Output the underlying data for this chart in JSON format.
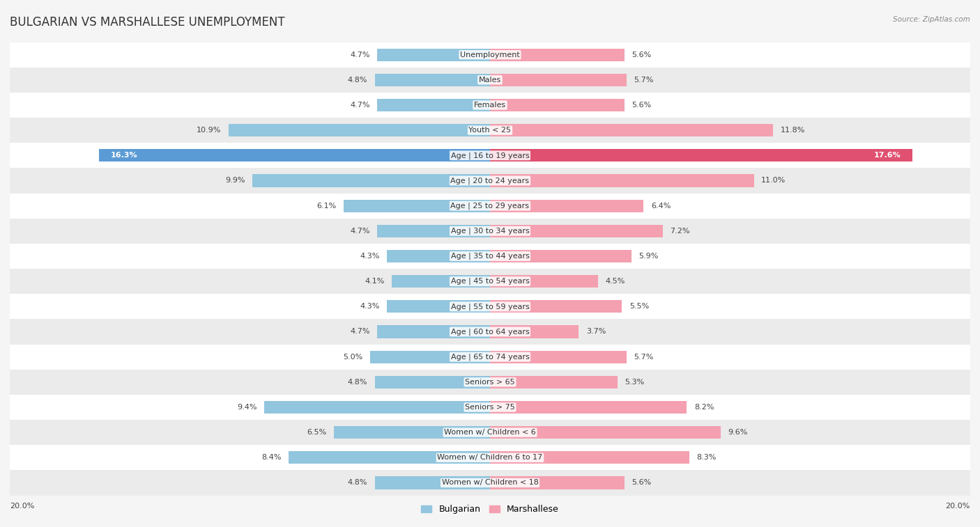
{
  "title": "BULGARIAN VS MARSHALLESE UNEMPLOYMENT",
  "source": "Source: ZipAtlas.com",
  "categories": [
    "Unemployment",
    "Males",
    "Females",
    "Youth < 25",
    "Age | 16 to 19 years",
    "Age | 20 to 24 years",
    "Age | 25 to 29 years",
    "Age | 30 to 34 years",
    "Age | 35 to 44 years",
    "Age | 45 to 54 years",
    "Age | 55 to 59 years",
    "Age | 60 to 64 years",
    "Age | 65 to 74 years",
    "Seniors > 65",
    "Seniors > 75",
    "Women w/ Children < 6",
    "Women w/ Children 6 to 17",
    "Women w/ Children < 18"
  ],
  "bulgarian": [
    4.7,
    4.8,
    4.7,
    10.9,
    16.3,
    9.9,
    6.1,
    4.7,
    4.3,
    4.1,
    4.3,
    4.7,
    5.0,
    4.8,
    9.4,
    6.5,
    8.4,
    4.8
  ],
  "marshallese": [
    5.6,
    5.7,
    5.6,
    11.8,
    17.6,
    11.0,
    6.4,
    7.2,
    5.9,
    4.5,
    5.5,
    3.7,
    5.7,
    5.3,
    8.2,
    9.6,
    8.3,
    5.6
  ],
  "bulgarian_color": "#92c5de",
  "marshallese_color": "#f4a0b0",
  "bulgarian_highlight_color": "#5b9bd5",
  "marshallese_highlight_color": "#e05070",
  "bg_light": "#f5f5f5",
  "bg_dark": "#e8e8e8",
  "row_light": "#ffffff",
  "row_dark": "#ebebeb",
  "max_value": 20.0,
  "legend_label_bulgarian": "Bulgarian",
  "legend_label_marshallese": "Marshallese",
  "title_fontsize": 12,
  "label_fontsize": 8,
  "value_fontsize": 8,
  "highlight_row": 4
}
